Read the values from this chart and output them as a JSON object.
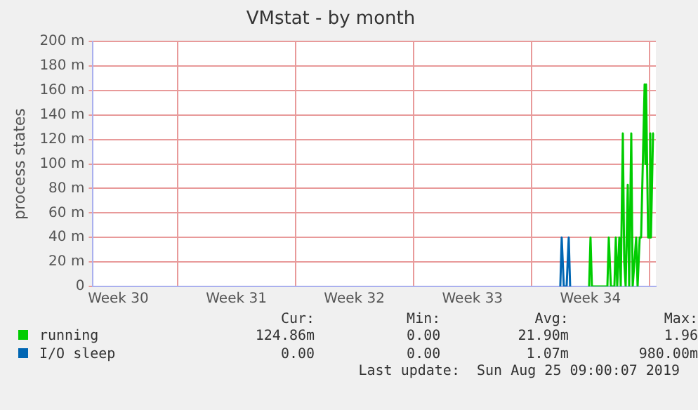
{
  "chart_data": {
    "type": "line",
    "title": "VMstat - by month",
    "ylabel": "process states",
    "xlim": [
      "2019-07-23",
      "2019-08-25T09:00"
    ],
    "xticks": [
      {
        "value": "2019-07-24T12:00",
        "label": "Week 30"
      },
      {
        "value": "2019-07-28",
        "label": null
      },
      {
        "value": "2019-07-31T12:00",
        "label": "Week 31"
      },
      {
        "value": "2019-08-04",
        "label": null
      },
      {
        "value": "2019-08-07T12:00",
        "label": "Week 32"
      },
      {
        "value": "2019-08-11",
        "label": null
      },
      {
        "value": "2019-08-14T12:00",
        "label": "Week 33"
      },
      {
        "value": "2019-08-18",
        "label": null
      },
      {
        "value": "2019-08-21T12:00",
        "label": "Week 34"
      },
      {
        "value": "2019-08-25",
        "label": null
      }
    ],
    "ylim": [
      0,
      200
    ],
    "yticks": [
      {
        "value": 0,
        "label": "0"
      },
      {
        "value": 20,
        "label": "20 m"
      },
      {
        "value": 40,
        "label": "40 m"
      },
      {
        "value": 60,
        "label": "60 m"
      },
      {
        "value": 80,
        "label": "80 m"
      },
      {
        "value": 100,
        "label": "100 m"
      },
      {
        "value": 120,
        "label": "120 m"
      },
      {
        "value": 140,
        "label": "140 m"
      },
      {
        "value": 160,
        "label": "160 m"
      },
      {
        "value": 180,
        "label": "180 m"
      },
      {
        "value": 200,
        "label": "200 m"
      }
    ],
    "grid": true,
    "legend": "bottom left",
    "marker": "none",
    "line_style": "solid",
    "series": [
      {
        "name": "running",
        "color": "#00cc00",
        "x": [
          "2019-08-21T10:00",
          "2019-08-21T12:00",
          "2019-08-21T14:00",
          "2019-08-22T12:00",
          "2019-08-22T14:00",
          "2019-08-22T17:00",
          "2019-08-22T22:00",
          "2019-08-23T00:00",
          "2019-08-23T02:00",
          "2019-08-23T05:00",
          "2019-08-23T07:00",
          "2019-08-23T10:00",
          "2019-08-23T12:00",
          "2019-08-23T14:00",
          "2019-08-23T17:00",
          "2019-08-23T19:00",
          "2019-08-23T22:00",
          "2019-08-24T00:00",
          "2019-08-24T05:00",
          "2019-08-24T07:00",
          "2019-08-24T10:00",
          "2019-08-24T12:00",
          "2019-08-24T17:00",
          "2019-08-24T18:00",
          "2019-08-24T19:00",
          "2019-08-24T22:00",
          "2019-08-25T00:00",
          "2019-08-25T01:00",
          "2019-08-25T02:00",
          "2019-08-25T05:00",
          "2019-08-25T06:00"
        ],
        "values": [
          0,
          40,
          0,
          0,
          40,
          0,
          0,
          40,
          0,
          40,
          0,
          125,
          20,
          0,
          83,
          0,
          125,
          0,
          40,
          0,
          40,
          40,
          165,
          100,
          165,
          40,
          40,
          125,
          40,
          125,
          125
        ]
      },
      {
        "name": "I/O sleep",
        "color": "#0066b3",
        "x": [
          "2019-08-19T17:00",
          "2019-08-19T19:00",
          "2019-08-19T22:00",
          "2019-08-20T02:00",
          "2019-08-20T05:00",
          "2019-08-20T07:00"
        ],
        "values": [
          0,
          40,
          0,
          0,
          40,
          0
        ]
      }
    ],
    "annotations": [
      "Cur:",
      "Min:",
      "Avg:",
      "Max:",
      "124.86m",
      "0.00",
      "21.90m",
      "1.96",
      "0.00",
      "0.00",
      "1.07m",
      "980.00m",
      "Last update:  Sun Aug 25 09:00:07 2019"
    ]
  }
}
